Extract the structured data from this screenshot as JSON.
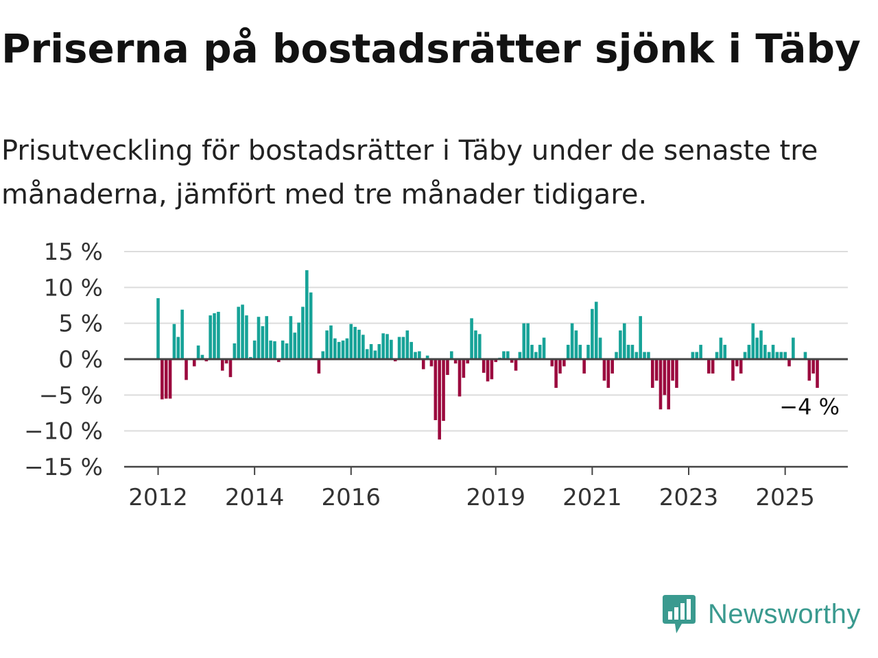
{
  "header": {
    "title": "Priserna på bostadsrätter sjönk i Täby",
    "subtitle": "Prisutveckling för bostadsrätter i Täby under de senaste tre månaderna, jämfört med tre månader tidigare."
  },
  "brand": {
    "name": "Newsworthy",
    "logo_icon": "newsworthy-chart-bubble-icon"
  },
  "colors": {
    "positive": "#17a398",
    "negative": "#9b0a3e",
    "grid": "#dcdcdc",
    "axis": "#444444",
    "brand": "#3a9a8f"
  },
  "chart_data": {
    "type": "bar",
    "title": "",
    "xlabel": "",
    "ylabel": "",
    "ylim": [
      -15,
      15
    ],
    "ytick_values": [
      15,
      10,
      5,
      0,
      -5,
      -10,
      -15
    ],
    "ytick_labels": [
      "15 %",
      "10 %",
      "5 %",
      "0 %",
      "−5 %",
      "−10 %",
      "−15 %"
    ],
    "x_ticks": [
      {
        "label": "2012",
        "date": "2012-01"
      },
      {
        "label": "2014",
        "date": "2014-01"
      },
      {
        "label": "2016",
        "date": "2016-01"
      },
      {
        "label": "2019",
        "date": "2019-01"
      },
      {
        "label": "2021",
        "date": "2021-01"
      },
      {
        "label": "2023",
        "date": "2023-01"
      },
      {
        "label": "2025",
        "date": "2025-01"
      }
    ],
    "grid": true,
    "last_value_label": "−4 %",
    "series": [
      {
        "start": "2012-01",
        "frequency": "monthly",
        "values": [
          8.5,
          -5.6,
          -5.5,
          -5.5,
          4.9,
          3.1,
          6.9,
          -2.9,
          0.0,
          -1.0,
          1.9,
          0.6,
          -0.3,
          6.1,
          6.4,
          6.6,
          -1.6,
          -0.6,
          -2.5,
          2.2,
          7.3,
          7.6,
          6.1,
          0.3,
          2.6,
          5.9,
          4.6,
          6.0,
          2.6,
          2.5,
          -0.4,
          2.6,
          2.2,
          6.0,
          3.7,
          5.1,
          7.3,
          12.4,
          9.3,
          0.0,
          -2.0,
          1.1,
          4.0,
          4.7,
          2.9,
          2.4,
          2.6,
          2.9,
          4.9,
          4.5,
          4.1,
          3.4,
          1.4,
          2.1,
          1.2,
          2.1,
          3.6,
          3.5,
          2.7,
          -0.3,
          3.1,
          3.1,
          4.0,
          2.4,
          1.0,
          1.1,
          -1.4,
          0.5,
          -1.0,
          -8.5,
          -11.2,
          -8.6,
          -2.2,
          1.1,
          -0.6,
          -5.2,
          -2.6,
          -0.6,
          5.7,
          4.0,
          3.5,
          -1.9,
          -3.1,
          -2.8,
          -0.4,
          0.2,
          1.1,
          1.1,
          -0.5,
          -1.6,
          1.0,
          5.0,
          5.0,
          2.0,
          1.0,
          2.0,
          3.0,
          0.0,
          -1.0,
          -4.0,
          -2.0,
          -1.0,
          2.0,
          5.0,
          4.0,
          2.0,
          -2.0,
          2.0,
          7.0,
          8.0,
          3.0,
          -3.0,
          -4.0,
          -2.0,
          1.0,
          4.0,
          5.0,
          2.0,
          2.0,
          1.0,
          6.0,
          1.0,
          1.0,
          -4.0,
          -3.0,
          -7.0,
          -5.0,
          -7.0,
          -3.0,
          -4.0,
          0.0,
          0.0,
          0.0,
          1.0,
          1.0,
          2.0,
          0.0,
          -2.0,
          -2.0,
          1.0,
          3.0,
          2.0,
          0.0,
          -3.0,
          -1.0,
          -2.0,
          1.0,
          2.0,
          5.0,
          3.0,
          4.0,
          2.0,
          1.0,
          2.0,
          1.0,
          1.0,
          1.0,
          -1.0,
          3.0,
          0.0,
          0.0,
          1.0,
          -3.0,
          -2.0,
          -4.0
        ]
      }
    ]
  }
}
